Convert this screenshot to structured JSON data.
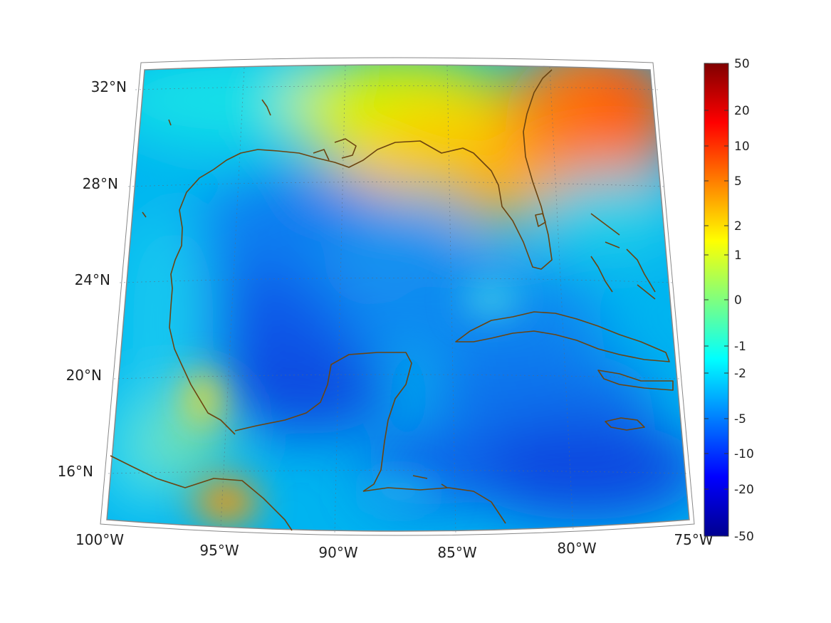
{
  "map": {
    "projection": "conic",
    "longitude_labels": [
      "100°W",
      "95°W",
      "90°W",
      "85°W",
      "80°W",
      "75°W"
    ],
    "latitude_labels": [
      "32°N",
      "28°N",
      "24°N",
      "20°N",
      "16°N"
    ],
    "longitude_values": [
      -100,
      -95,
      -90,
      -85,
      -80,
      -75
    ],
    "latitude_values": [
      32,
      28,
      24,
      20,
      16
    ],
    "extent": {
      "lon": [
        -100,
        -75
      ],
      "lat": [
        14,
        33
      ]
    },
    "grid": "dotted",
    "coastline_color": "#6b4410"
  },
  "colorbar": {
    "tick_labels": [
      "50",
      "20",
      "10",
      "5",
      "2",
      "1",
      "0",
      "-1",
      "-2",
      "-5",
      "-10",
      "-20",
      "-50"
    ],
    "colormap": "jet",
    "range": [
      -50,
      50
    ]
  }
}
